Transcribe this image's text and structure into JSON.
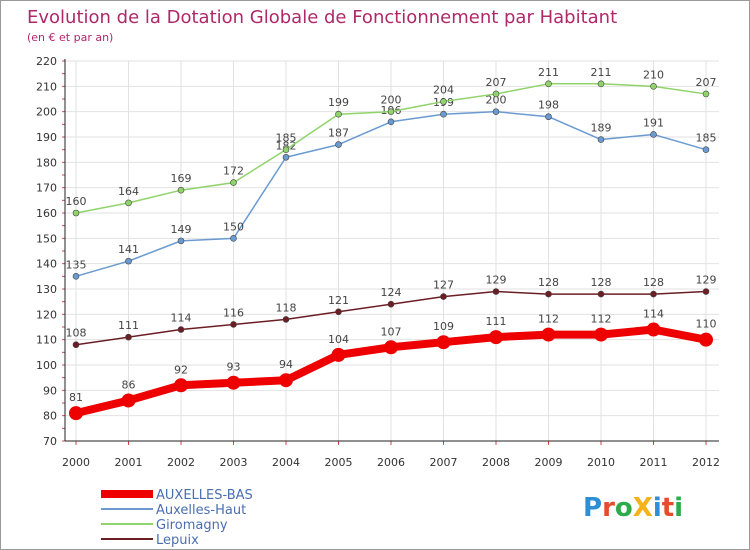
{
  "chart_data": {
    "type": "line",
    "title": "Evolution de la Dotation Globale de Fonctionnement par Habitant",
    "subtitle": "(en € et par an)",
    "categories": [
      "2000",
      "2001",
      "2002",
      "2003",
      "2004",
      "2005",
      "2006",
      "2007",
      "2008",
      "2009",
      "2010",
      "2011",
      "2012"
    ],
    "ylim": [
      70,
      220
    ],
    "yticks": [
      70,
      80,
      90,
      100,
      110,
      120,
      130,
      140,
      150,
      160,
      170,
      180,
      190,
      200,
      210,
      220
    ],
    "grid": true,
    "legend_position": "bottom-left",
    "title_color": "#b0286a",
    "series": [
      {
        "name": "AUXELLES-BAS",
        "color": "#ee0000",
        "emphasis": true,
        "values": [
          81,
          86,
          92,
          93,
          94,
          104,
          107,
          109,
          111,
          112,
          112,
          114,
          110
        ]
      },
      {
        "name": "Auxelles-Haut",
        "color": "#6a9ad0",
        "values": [
          135,
          141,
          149,
          150,
          182,
          187,
          196,
          199,
          200,
          198,
          189,
          191,
          185
        ]
      },
      {
        "name": "Giromagny",
        "color": "#8fd36a",
        "values": [
          160,
          164,
          169,
          172,
          185,
          199,
          200,
          204,
          207,
          211,
          211,
          210,
          207
        ]
      },
      {
        "name": "Lepuix",
        "color": "#6b1e24",
        "values": [
          108,
          111,
          114,
          116,
          118,
          121,
          124,
          127,
          129,
          128,
          128,
          128,
          129
        ]
      }
    ]
  },
  "logo": {
    "text": "ProXiti"
  }
}
